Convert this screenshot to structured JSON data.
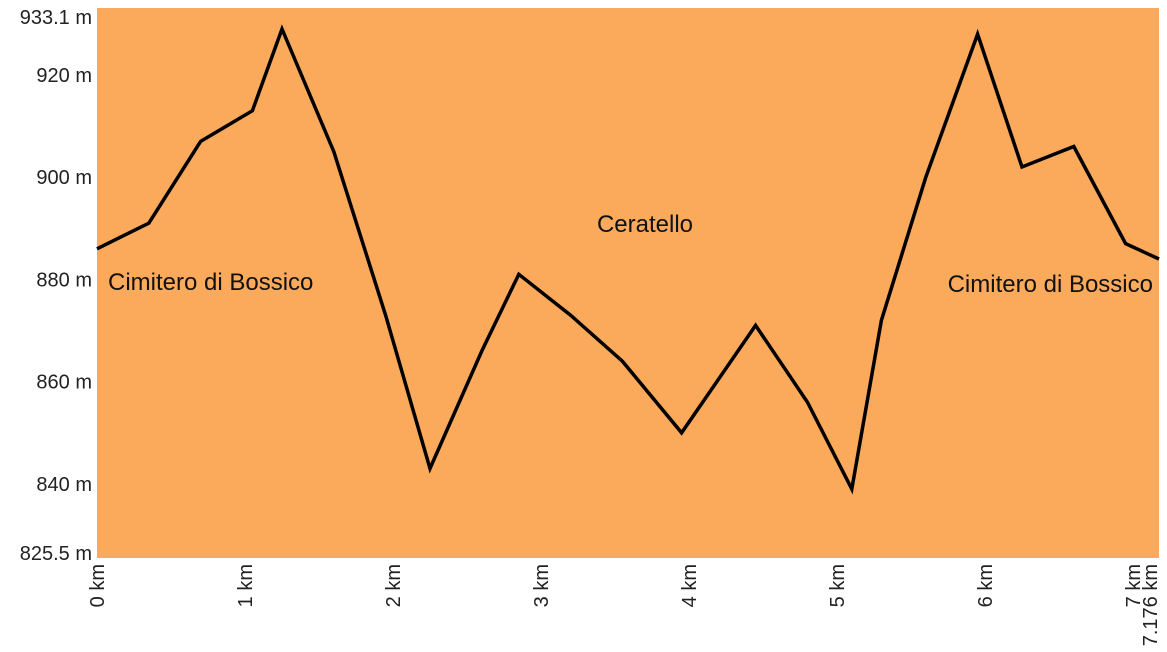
{
  "chart_data": {
    "type": "area",
    "x": [
      0,
      0.35,
      0.7,
      1.05,
      1.25,
      1.6,
      1.95,
      2.25,
      2.6,
      2.85,
      3.2,
      3.55,
      3.95,
      4.45,
      4.8,
      5.1,
      5.3,
      5.6,
      5.95,
      6.25,
      6.6,
      6.95,
      7.176
    ],
    "y": [
      886,
      891,
      907,
      913,
      929,
      905,
      873,
      843,
      866,
      881,
      873,
      864,
      850,
      871,
      856,
      839,
      872,
      900,
      928,
      902,
      906,
      887,
      884
    ],
    "xlim": [
      0,
      7.176
    ],
    "ylim": [
      825.5,
      933.1
    ],
    "x_ticks": [
      0,
      1,
      2,
      3,
      4,
      5,
      6,
      7,
      7.176
    ],
    "x_tick_labels": [
      "0 km",
      "1 km",
      "2 km",
      "3 km",
      "4 km",
      "5 km",
      "6 km",
      "7 km",
      "7.176 km"
    ],
    "y_ticks": [
      825.5,
      840,
      860,
      880,
      900,
      920,
      933.1
    ],
    "y_tick_labels": [
      "825.5 m",
      "840 m",
      "860 m",
      "880 m",
      "900 m",
      "920 m",
      "933.1 m"
    ],
    "annotations": [
      {
        "text": "Cimitero di Bossico",
        "anchor": "start-left"
      },
      {
        "text": "Ceratello",
        "anchor": "center-top"
      },
      {
        "text": "Cimitero di Bossico",
        "anchor": "end-right"
      }
    ],
    "grid": false,
    "colors": {
      "fill": "#fbaa5b",
      "line": "#000000"
    }
  }
}
